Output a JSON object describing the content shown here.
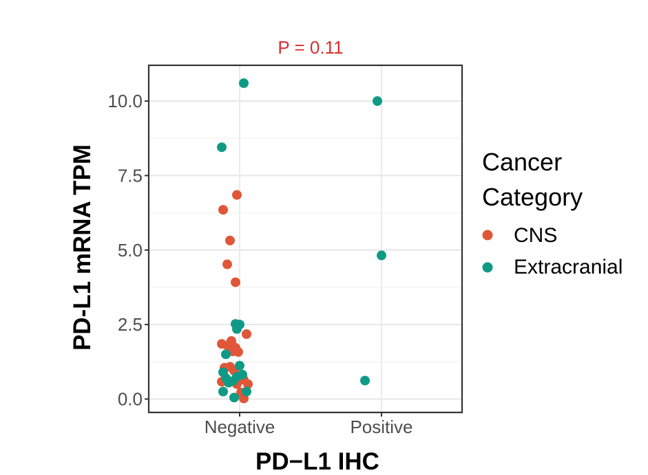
{
  "chart_data": {
    "type": "scatter",
    "title": "P = 0.11",
    "xlabel": "PD−L1 IHC",
    "ylabel": "PD-L1 mRNA TPM",
    "categories": [
      "Negative",
      "Positive"
    ],
    "ylim": [
      -0.45,
      11.2
    ],
    "yticks": [
      0.0,
      2.5,
      5.0,
      7.5,
      10.0
    ],
    "ytick_labels": [
      "0.0",
      "2.5",
      "5.0",
      "7.5",
      "10.0"
    ],
    "grid": true,
    "legend": {
      "title_lines": [
        "Cancer",
        "Category"
      ],
      "entries": [
        {
          "label": "CNS",
          "color": "#e05638"
        },
        {
          "label": "Extracranial",
          "color": "#0f9a86"
        }
      ]
    },
    "series": [
      {
        "name": "CNS",
        "color": "#e05638",
        "points": [
          {
            "x": "Negative",
            "jitter": -0.02,
            "y": 6.85
          },
          {
            "x": "Negative",
            "jitter": -0.12,
            "y": 6.35
          },
          {
            "x": "Negative",
            "jitter": -0.07,
            "y": 5.32
          },
          {
            "x": "Negative",
            "jitter": -0.09,
            "y": 4.52
          },
          {
            "x": "Negative",
            "jitter": -0.03,
            "y": 3.92
          },
          {
            "x": "Negative",
            "jitter": 0.05,
            "y": 2.18
          },
          {
            "x": "Negative",
            "jitter": -0.13,
            "y": 1.85
          },
          {
            "x": "Negative",
            "jitter": -0.09,
            "y": 1.8
          },
          {
            "x": "Negative",
            "jitter": -0.06,
            "y": 1.95
          },
          {
            "x": "Negative",
            "jitter": -0.03,
            "y": 1.72
          },
          {
            "x": "Negative",
            "jitter": -0.05,
            "y": 1.6
          },
          {
            "x": "Negative",
            "jitter": -0.01,
            "y": 1.58
          },
          {
            "x": "Negative",
            "jitter": -0.11,
            "y": 1.05
          },
          {
            "x": "Negative",
            "jitter": -0.07,
            "y": 1.08
          },
          {
            "x": "Negative",
            "jitter": -0.04,
            "y": 0.95
          },
          {
            "x": "Negative",
            "jitter": -0.13,
            "y": 0.58
          },
          {
            "x": "Negative",
            "jitter": -0.02,
            "y": 0.5
          },
          {
            "x": "Negative",
            "jitter": 0.03,
            "y": 0.65
          },
          {
            "x": "Negative",
            "jitter": 0.06,
            "y": 0.5
          },
          {
            "x": "Negative",
            "jitter": 0.01,
            "y": 0.22
          },
          {
            "x": "Negative",
            "jitter": 0.03,
            "y": 0.02
          }
        ]
      },
      {
        "name": "Extracranial",
        "color": "#0f9a86",
        "points": [
          {
            "x": "Negative",
            "jitter": 0.03,
            "y": 10.6
          },
          {
            "x": "Negative",
            "jitter": -0.13,
            "y": 8.45
          },
          {
            "x": "Negative",
            "jitter": -0.03,
            "y": 2.52
          },
          {
            "x": "Negative",
            "jitter": 0.0,
            "y": 2.5
          },
          {
            "x": "Negative",
            "jitter": -0.02,
            "y": 2.35
          },
          {
            "x": "Negative",
            "jitter": -0.1,
            "y": 1.5
          },
          {
            "x": "Negative",
            "jitter": 0.0,
            "y": 1.12
          },
          {
            "x": "Negative",
            "jitter": -0.12,
            "y": 0.9
          },
          {
            "x": "Negative",
            "jitter": -0.1,
            "y": 0.7
          },
          {
            "x": "Negative",
            "jitter": -0.08,
            "y": 0.55
          },
          {
            "x": "Negative",
            "jitter": -0.05,
            "y": 0.6
          },
          {
            "x": "Negative",
            "jitter": -0.02,
            "y": 0.75
          },
          {
            "x": "Negative",
            "jitter": 0.02,
            "y": 0.82
          },
          {
            "x": "Negative",
            "jitter": -0.12,
            "y": 0.25
          },
          {
            "x": "Negative",
            "jitter": 0.05,
            "y": 0.25
          },
          {
            "x": "Negative",
            "jitter": -0.04,
            "y": 0.05
          },
          {
            "x": "Positive",
            "jitter": -0.03,
            "y": 10.0
          },
          {
            "x": "Positive",
            "jitter": 0.0,
            "y": 4.82
          },
          {
            "x": "Positive",
            "jitter": -0.12,
            "y": 0.62
          }
        ]
      }
    ]
  }
}
